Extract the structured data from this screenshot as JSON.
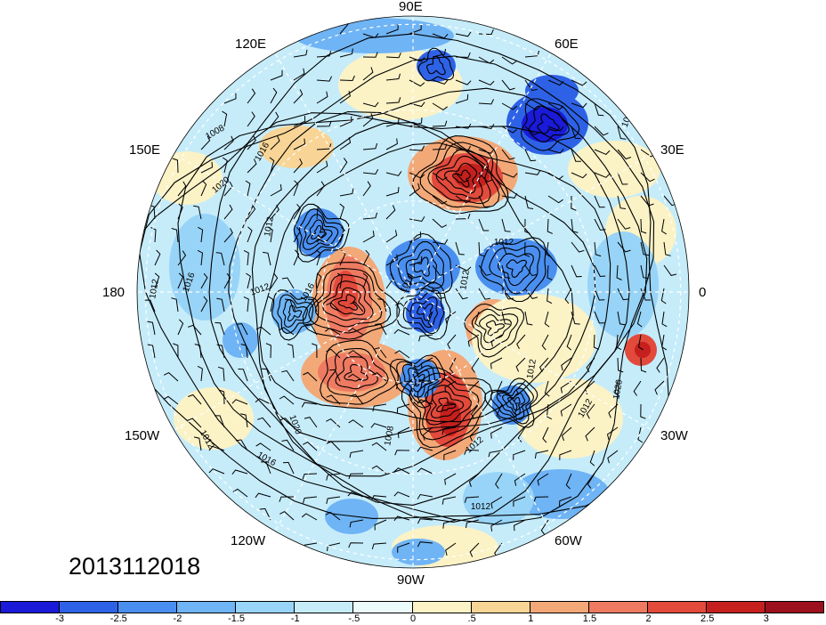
{
  "timestamp": "2013112018",
  "longitude_labels": {
    "lon_90e": "90E",
    "lon_60e": "60E",
    "lon_30e": "30E",
    "lon_0": "0",
    "lon_30w": "30W",
    "lon_60w": "60W",
    "lon_90w": "90W",
    "lon_120w": "120W",
    "lon_150w": "150W",
    "lon_180": "180",
    "lon_150e": "150E",
    "lon_120e": "120E"
  },
  "contour_labels": [
    "1008",
    "1016",
    "1012",
    "1012",
    "1012",
    "1016",
    "1012",
    "1012",
    "1016",
    "1020",
    "1016",
    "1012",
    "1012",
    "1020",
    "1012",
    "1008",
    "1012",
    "1012",
    "1016",
    "1012",
    "1020"
  ],
  "colorbar": {
    "tick_labels": [
      "-3",
      "-2.5",
      "-2",
      "-1.5",
      "-1",
      "-.5",
      "0",
      ".5",
      "1",
      "1.5",
      "2",
      "2.5",
      "3"
    ],
    "colors": [
      "#1a1ad8",
      "#2e62e6",
      "#4a8ff0",
      "#6fb4f5",
      "#98d4f7",
      "#c6ecfa",
      "#ecfbfc",
      "#fbf2c6",
      "#f8d596",
      "#f3a878",
      "#ee7a62",
      "#e24a3c",
      "#c5201e",
      "#9c0f1c"
    ]
  },
  "map": {
    "projection": "north polar stereographic",
    "fill_variable_range": [
      -3,
      3
    ],
    "contours": "sea level pressure (hPa)",
    "overlay": "wind barbs",
    "neutral_color": "#ecfbfc",
    "land_outline_color": "#333333"
  }
}
